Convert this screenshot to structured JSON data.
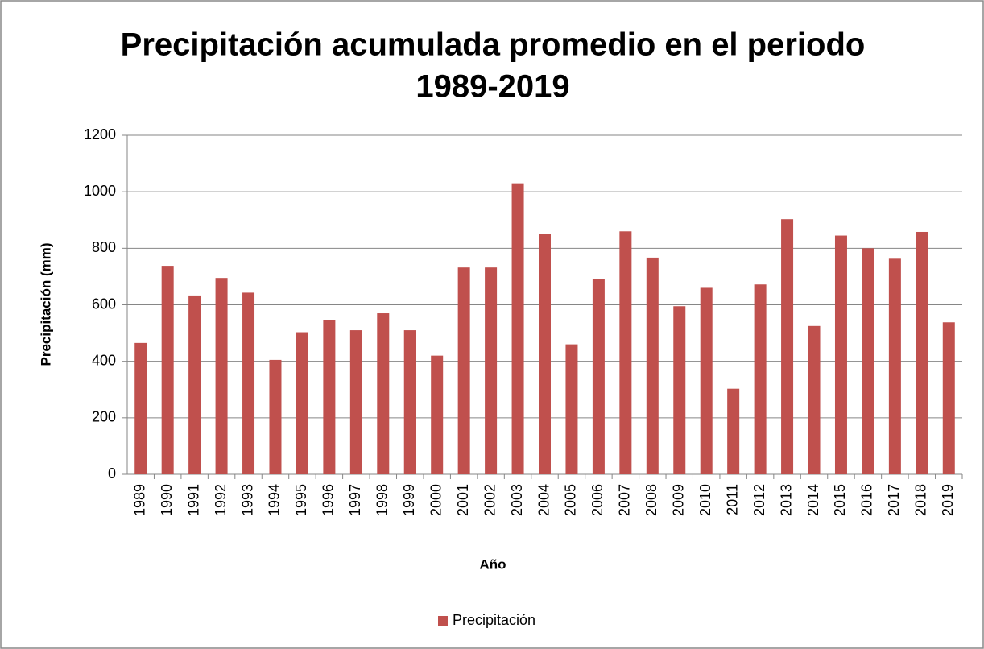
{
  "chart_data": {
    "type": "bar",
    "title": [
      "Precipitación acumulada promedio en el periodo",
      "1989-2019"
    ],
    "x_label": "Año",
    "y_label": "Precipitación (mm)",
    "categories": [
      "1989",
      "1990",
      "1991",
      "1992",
      "1993",
      "1994",
      "1995",
      "1996",
      "1997",
      "1998",
      "1999",
      "2000",
      "2001",
      "2002",
      "2003",
      "2004",
      "2005",
      "2006",
      "2007",
      "2008",
      "2009",
      "2010",
      "2011",
      "2012",
      "2013",
      "2014",
      "2015",
      "2016",
      "2017",
      "2018",
      "2019"
    ],
    "series": [
      {
        "name": "Precipitación",
        "color": "#c0504d",
        "values": [
          465,
          738,
          633,
          695,
          643,
          405,
          503,
          545,
          510,
          570,
          510,
          420,
          732,
          732,
          1030,
          852,
          460,
          690,
          860,
          767,
          595,
          660,
          303,
          672,
          903,
          525,
          845,
          800,
          763,
          858,
          538
        ]
      }
    ],
    "ylim": [
      0,
      1200
    ],
    "yticks": [
      0,
      200,
      400,
      600,
      800,
      1000,
      1200
    ],
    "grid": true,
    "legend": "bottom"
  }
}
